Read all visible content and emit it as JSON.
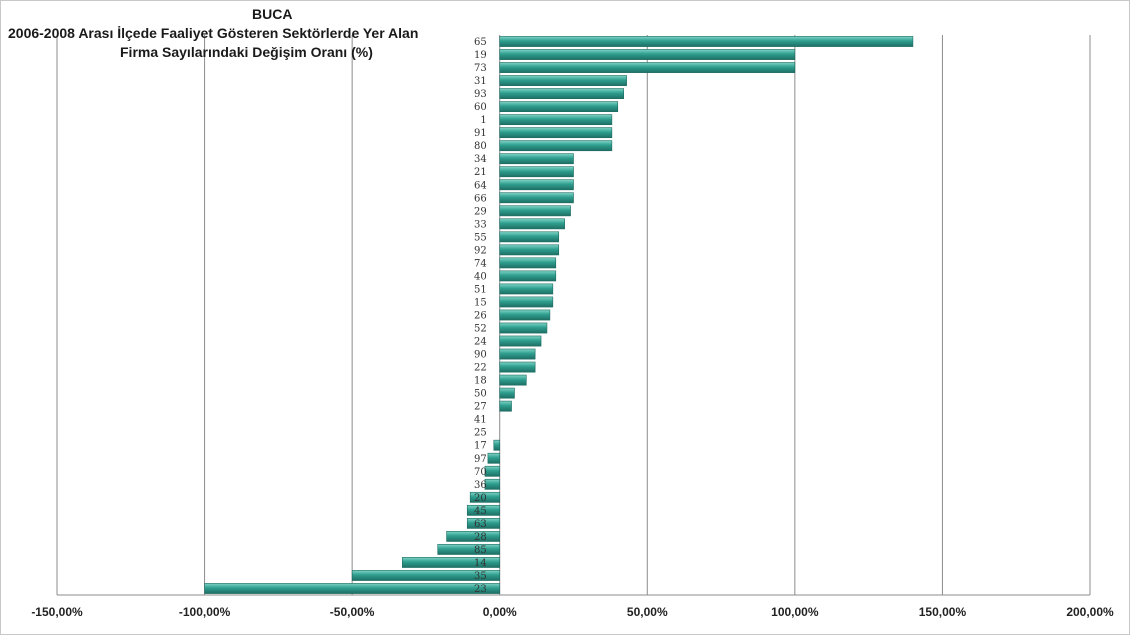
{
  "chart_data": {
    "type": "bar",
    "orientation": "horizontal",
    "title_lines": [
      "BUCA",
      "2006-2008 Arası İlçede Faaliyet Gösteren Sektörlerde Yer Alan",
      "Firma Sayılarındaki Değişim Oranı (%)"
    ],
    "categories": [
      "65",
      "19",
      "73",
      "31",
      "93",
      "60",
      "1",
      "91",
      "80",
      "34",
      "21",
      "64",
      "66",
      "29",
      "33",
      "55",
      "92",
      "74",
      "40",
      "51",
      "15",
      "26",
      "52",
      "24",
      "90",
      "22",
      "18",
      "50",
      "27",
      "41",
      "25",
      "17",
      "97",
      "70",
      "36",
      "20",
      "45",
      "63",
      "28",
      "85",
      "14",
      "35",
      "23"
    ],
    "values": [
      140,
      100,
      100,
      43,
      42,
      40,
      38,
      38,
      38,
      25,
      25,
      25,
      25,
      24,
      22,
      20,
      20,
      19,
      19,
      18,
      18,
      17,
      16,
      14,
      12,
      12,
      9,
      5,
      4,
      0,
      0,
      -2,
      -4,
      -5,
      -5,
      -10,
      -11,
      -11,
      -18,
      -21,
      -33,
      -50,
      -100
    ],
    "xlim": [
      -150,
      200
    ],
    "xticks": [
      -150,
      -100,
      -50,
      0,
      50,
      100,
      150,
      200
    ],
    "xtick_labels": [
      "-150,00%",
      "-100,00%",
      "-50,00%",
      "0,00%",
      "50,00%",
      "100,00%",
      "150,00%",
      "200,00%"
    ],
    "grid": true,
    "bar_color": "#2e9e8e"
  }
}
